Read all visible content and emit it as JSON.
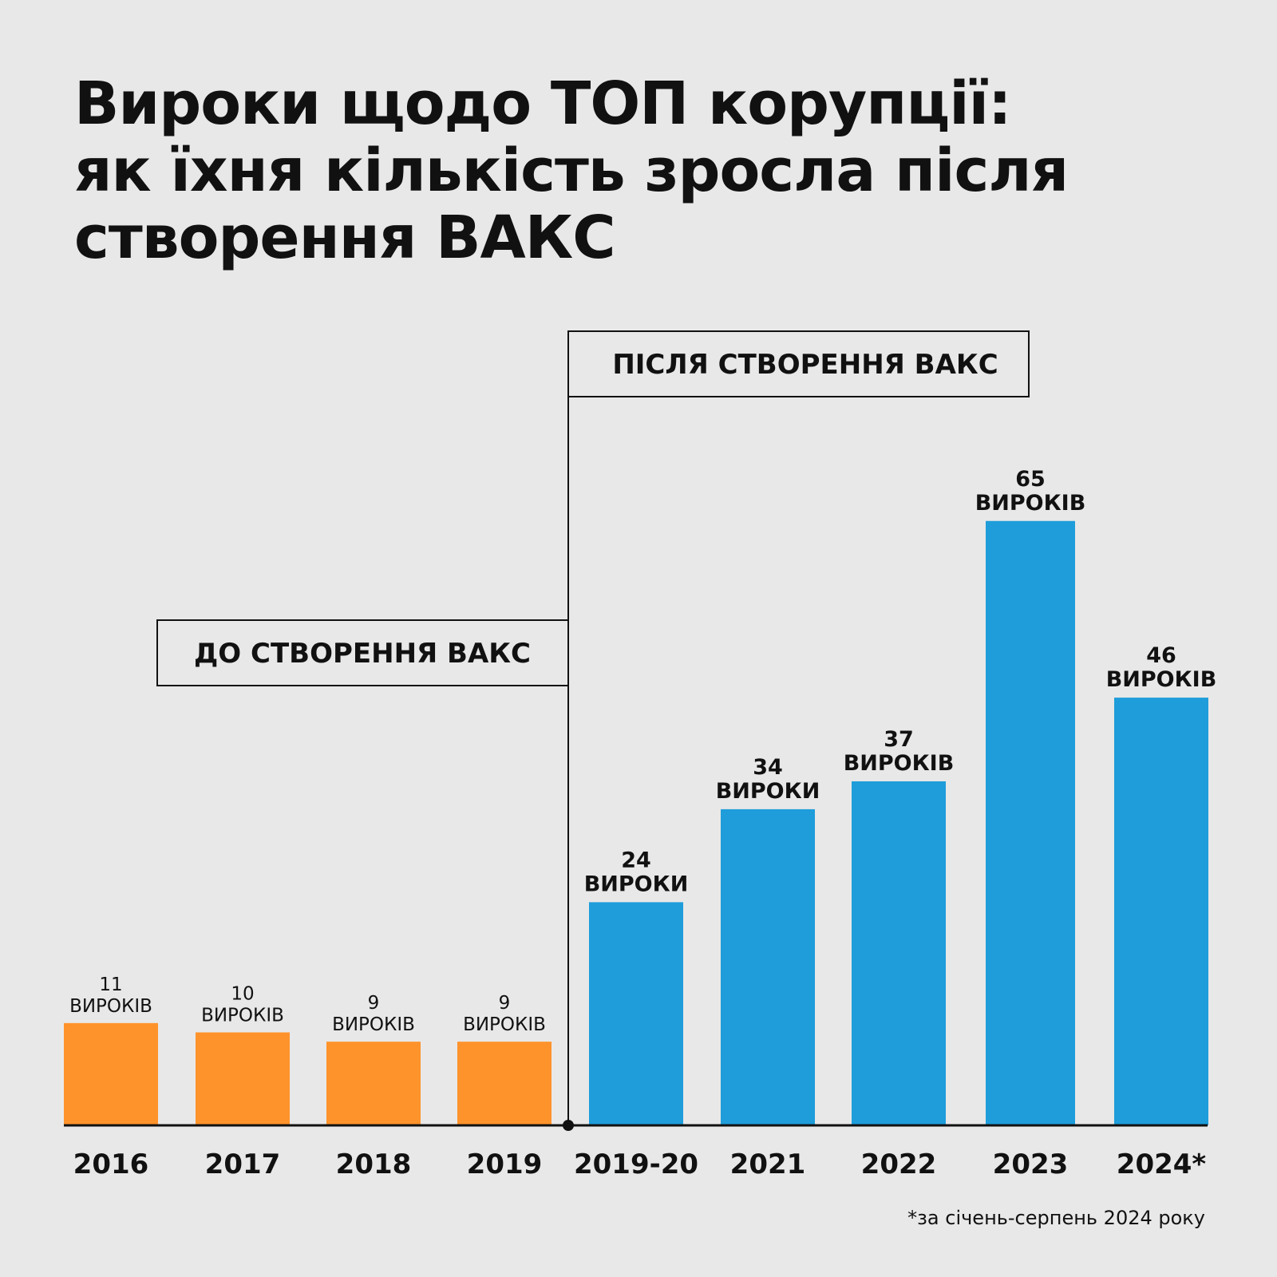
{
  "title_lines": [
    "Вироки щодо ТОП корупції:",
    "як їхня кількість зросла після",
    "створення ВАКС"
  ],
  "footnote": "*за січень-серпень 2024 року",
  "colors": {
    "before": "#ff932b",
    "after": "#1e9dda",
    "background": "#e8e8e8",
    "ink": "#111111"
  },
  "chart_data": {
    "type": "bar",
    "categories": [
      "2016",
      "2017",
      "2018",
      "2019",
      "2019-20",
      "2021",
      "2022",
      "2023",
      "2024*"
    ],
    "values": [
      11,
      10,
      9,
      9,
      24,
      34,
      37,
      65,
      46
    ],
    "value_units": [
      "ВИРОКІВ",
      "ВИРОКІВ",
      "ВИРОКІВ",
      "ВИРОКІВ",
      "ВИРОКИ",
      "ВИРОКИ",
      "ВИРОКІВ",
      "ВИРОКІВ",
      "ВИРОКІВ"
    ],
    "groups": [
      "before",
      "before",
      "before",
      "before",
      "after",
      "after",
      "after",
      "after",
      "after"
    ],
    "group_labels": {
      "before": "ДО СТВОРЕННЯ ВАКС",
      "after": "ПІСЛЯ СТВОРЕННЯ ВАКС"
    },
    "ylim": [
      0,
      65
    ],
    "grid": false
  }
}
